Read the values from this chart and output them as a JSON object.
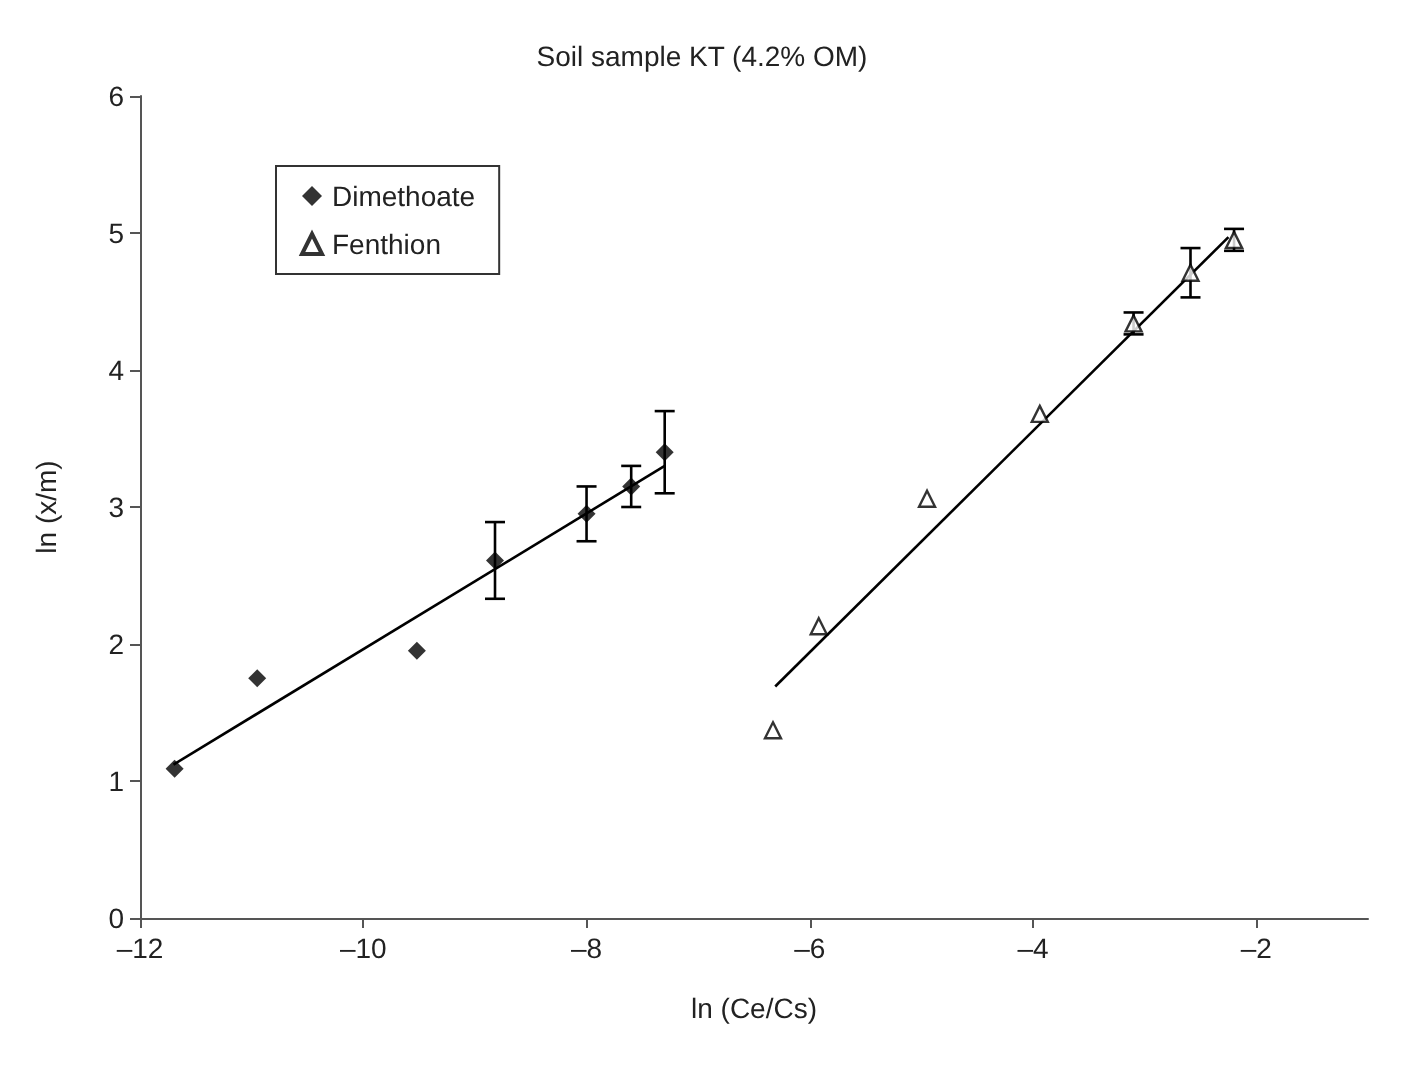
{
  "chart_data": {
    "type": "scatter",
    "title": "Soil sample KT (4.2% OM)",
    "xlabel": "ln (Ce/Cs)",
    "ylabel": "ln (x/m)",
    "xlim": [
      -12,
      -1
    ],
    "xticks": [
      {
        "value": -12,
        "label": "–12"
      },
      {
        "value": -10,
        "label": "–10"
      },
      {
        "value": -8,
        "label": "–8"
      },
      {
        "value": -6,
        "label": "–6"
      },
      {
        "value": -4,
        "label": "–4"
      },
      {
        "value": -2,
        "label": "–2"
      }
    ],
    "ylim": [
      0,
      6
    ],
    "yticks": [
      0,
      1,
      2,
      3,
      4,
      5,
      6
    ],
    "grid": false,
    "legend": "top left",
    "series": [
      {
        "name": "Dimethoate",
        "color": "#000000",
        "marker": "diamond",
        "x": [
          -11.69,
          -10.95,
          -9.52,
          -8.82,
          -8.0,
          -7.6,
          -7.3
        ],
        "values": [
          1.09,
          1.75,
          1.95,
          2.61,
          2.95,
          3.15,
          3.4
        ],
        "errors": [
          null,
          null,
          null,
          0.28,
          0.2,
          0.15,
          0.3
        ]
      },
      {
        "name": "Fenthion",
        "color": "#000000",
        "marker": "triangle",
        "x": [
          -6.33,
          -5.92,
          -4.95,
          -3.94,
          -3.1,
          -2.59,
          -2.2
        ],
        "values": [
          1.37,
          2.13,
          3.06,
          3.68,
          4.34,
          4.71,
          4.95
        ],
        "errors": [
          null,
          null,
          null,
          null,
          0.08,
          0.18,
          0.08
        ]
      },
      {
        "type": "line",
        "color": "#000000",
        "line_style": "solid",
        "marker": "none",
        "x": [
          -11.7,
          -7.3
        ],
        "values": [
          1.12,
          3.3
        ]
      },
      {
        "type": "line",
        "color": "#000000",
        "line_style": "solid",
        "marker": "none",
        "x": [
          -6.31,
          -2.25
        ],
        "values": [
          1.69,
          4.97
        ]
      }
    ]
  }
}
